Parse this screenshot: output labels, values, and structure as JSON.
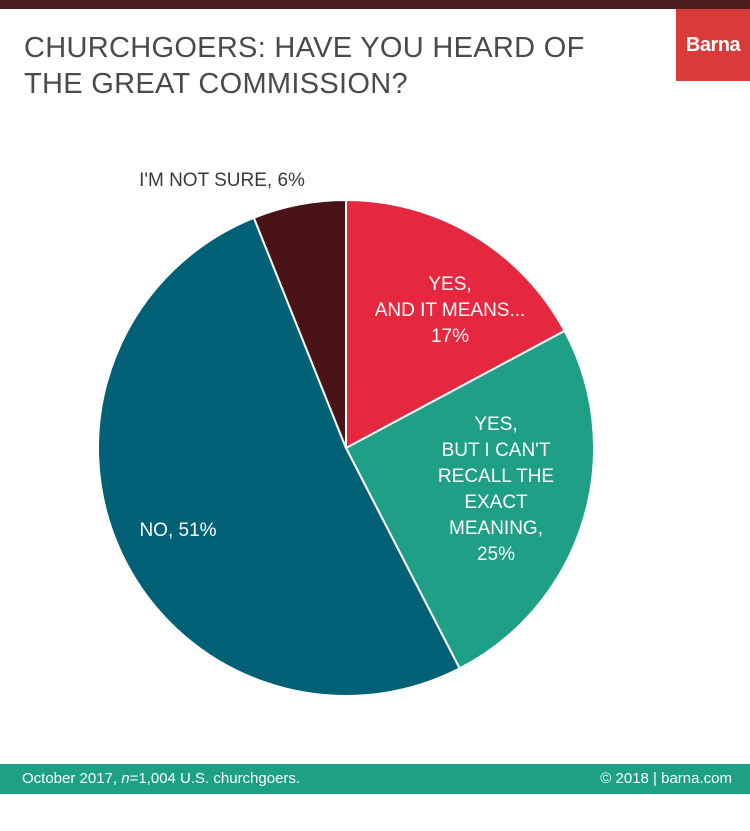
{
  "header": {
    "title_line1": "CHURCHGOERS: HAVE YOU HEARD OF",
    "title_line2": "THE GREAT COMMISSION?",
    "brand": "Barna",
    "brand_color": "#d93b38",
    "rule_color": "#4a1e1e"
  },
  "chart_data": {
    "type": "pie",
    "title": "CHURCHGOERS: HAVE YOU HEARD OF THE GREAT COMMISSION?",
    "start_angle_deg": 0,
    "direction": "clockwise",
    "slices": [
      {
        "label_lines": [
          "YES,",
          "AND IT MEANS..."
        ],
        "value": 17,
        "value_label": "17%",
        "color": "#e5283f",
        "label_color": "#ffffff"
      },
      {
        "label_lines": [
          "YES,",
          "BUT I CAN'T",
          "RECALL THE",
          "EXACT",
          "MEANING,"
        ],
        "value": 25,
        "value_label": "25%",
        "color": "#1e9f86",
        "label_color": "#ffffff"
      },
      {
        "label_lines": [
          "NO, 51%"
        ],
        "value": 51,
        "value_label": "",
        "color": "#006176",
        "label_color": "#ffffff"
      },
      {
        "label_lines": [
          "I'M NOT SURE, 6%"
        ],
        "value": 6,
        "value_label": "",
        "color": "#4a1417",
        "label_color": "#3a3a3a",
        "label_outside": true
      }
    ]
  },
  "footer": {
    "source_prefix": "October 2017, ",
    "source_n": "n",
    "source_suffix": "=1,004 U.S. churchgoers.",
    "copyright": "© 2018 | barna.com",
    "color": "#1ea085"
  }
}
